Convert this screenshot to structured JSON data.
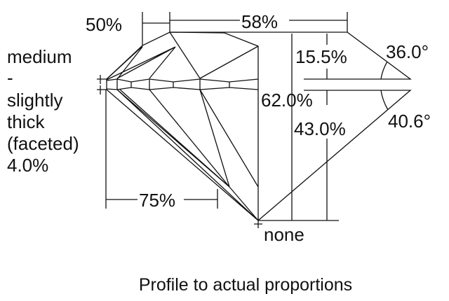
{
  "diagram": {
    "table_label": "58%",
    "crown_half_label": "50%",
    "girdle_description": [
      "medium",
      "-",
      "slightly",
      "thick",
      "(faceted)",
      "4.0%"
    ],
    "crown_height_label": "15.5%",
    "crown_angle_label": "36.0°",
    "total_depth_label": "62.0%",
    "pavilion_depth_label": "43.0%",
    "pavilion_angle_label": "40.6°",
    "lower_half_label": "75%",
    "culet_label": "none",
    "caption": "Profile to actual proportions"
  }
}
